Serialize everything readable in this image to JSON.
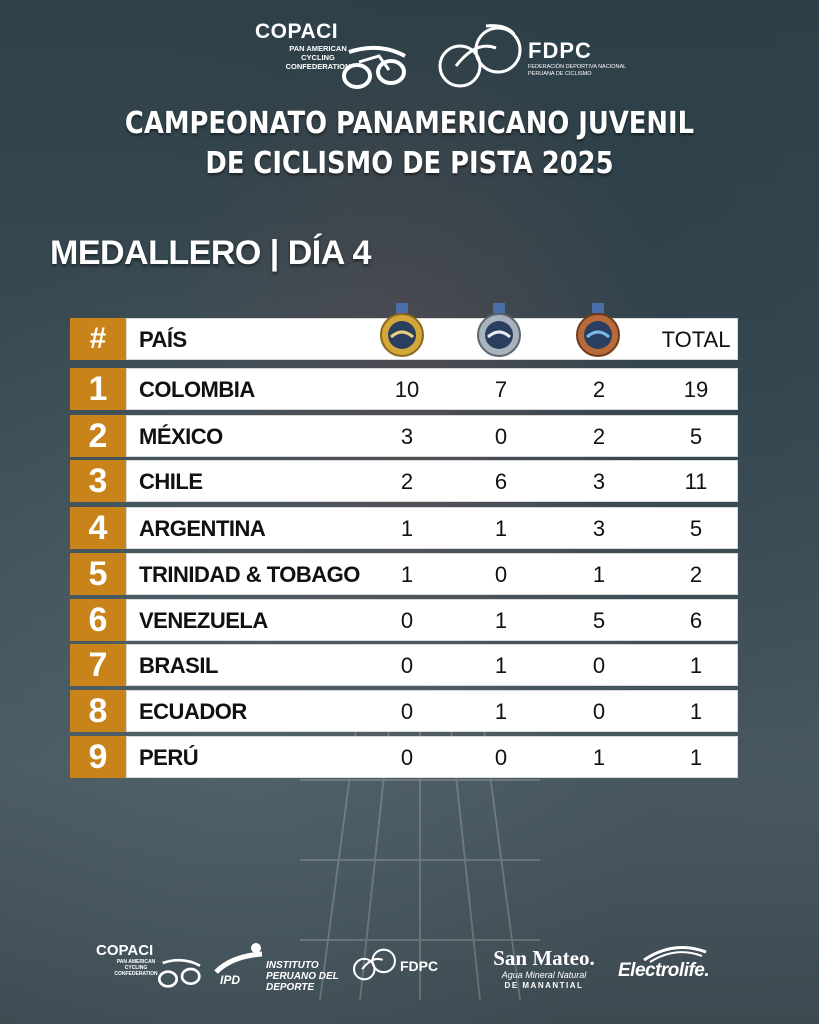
{
  "header": {
    "copaci_name": "COPACI",
    "copaci_sub": "PAN AMERICAN CYCLING CONFEDERATION",
    "fdpc_name": "FDPC",
    "fdpc_sub": "FEDERACIÓN DEPORTIVA NACIONAL PERUANA DE CICLISMO",
    "title_line1": "CAMPEONATO PANAMERICANO JUVENIL",
    "title_line2": "DE CICLISMO DE PISTA 2025",
    "subtitle": "MEDALLERO | DÍA 4"
  },
  "table": {
    "header": {
      "rank": "#",
      "country": "PAÍS",
      "total": "TOTAL"
    },
    "medal_icons": [
      "gold-medal-icon",
      "silver-medal-icon",
      "bronze-medal-icon"
    ],
    "rows": [
      {
        "rank": "1",
        "country": "COLOMBIA",
        "gold": "10",
        "silver": "7",
        "bronze": "2",
        "total": "19"
      },
      {
        "rank": "2",
        "country": "MÉXICO",
        "gold": "3",
        "silver": "0",
        "bronze": "2",
        "total": "5"
      },
      {
        "rank": "3",
        "country": "CHILE",
        "gold": "2",
        "silver": "6",
        "bronze": "3",
        "total": "11"
      },
      {
        "rank": "4",
        "country": "ARGENTINA",
        "gold": "1",
        "silver": "1",
        "bronze": "3",
        "total": "5"
      },
      {
        "rank": "5",
        "country": "TRINIDAD & TOBAGO",
        "gold": "1",
        "silver": "0",
        "bronze": "1",
        "total": "2"
      },
      {
        "rank": "6",
        "country": "VENEZUELA",
        "gold": "0",
        "silver": "1",
        "bronze": "5",
        "total": "6"
      },
      {
        "rank": "7",
        "country": "BRASIL",
        "gold": "0",
        "silver": "1",
        "bronze": "0",
        "total": "1"
      },
      {
        "rank": "8",
        "country": "ECUADOR",
        "gold": "0",
        "silver": "1",
        "bronze": "0",
        "total": "1"
      },
      {
        "rank": "9",
        "country": "PERÚ",
        "gold": "0",
        "silver": "0",
        "bronze": "1",
        "total": "1"
      }
    ]
  },
  "sponsors": {
    "copaci": "COPACI",
    "copaci_sub": "PAN AMERICAN CYCLING CONFEDERATION",
    "ipd": "INSTITUTO PERUANO DEL DEPORTE",
    "ipd_short": "IPD",
    "fdpc": "FDPC",
    "sanmateo": "San Mateo.",
    "sanmateo_sub1": "Agua Mineral Natural",
    "sanmateo_sub2": "DE MANANTIAL",
    "electrolife": "Electrolife."
  },
  "colors": {
    "rank_bg": "#c8841a",
    "row_bg": "#ffffff",
    "gold": "#d4a73a",
    "silver": "#a9b3bd",
    "bronze": "#b86a3a"
  }
}
